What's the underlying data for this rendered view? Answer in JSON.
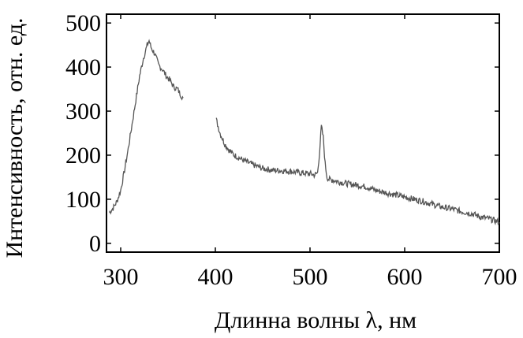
{
  "chart_data": {
    "type": "line",
    "xlabel": "Длинна волны λ, нм",
    "ylabel": "Интенсивность, отн. ед.",
    "xlim": [
      285,
      700
    ],
    "ylim": [
      -20,
      520
    ],
    "xticks": [
      300,
      400,
      500,
      600,
      700
    ],
    "yticks": [
      0,
      100,
      200,
      300,
      400,
      500
    ],
    "xtick_labels": [
      "300",
      "400",
      "500",
      "600",
      "700"
    ],
    "ytick_labels": [
      "0",
      "100",
      "200",
      "300",
      "400",
      "500"
    ],
    "grid": false,
    "line_color": "#555555",
    "series": [
      {
        "x": [
          288,
          292,
          296,
          300,
          304,
          308,
          312,
          316,
          320,
          324,
          328,
          330,
          332,
          336,
          340,
          344,
          348,
          352,
          356,
          360,
          364,
          366
        ],
        "y": [
          70,
          80,
          95,
          120,
          165,
          215,
          270,
          325,
          380,
          420,
          450,
          460,
          445,
          430,
          405,
          395,
          380,
          370,
          355,
          350,
          335,
          330
        ]
      },
      {
        "x": [
          401,
          405,
          410,
          415,
          420,
          430,
          440,
          450,
          460,
          470,
          480,
          490,
          500,
          505,
          508,
          510,
          512,
          514,
          516,
          518,
          520,
          525,
          530,
          540,
          550,
          560,
          570,
          580,
          590,
          600,
          610,
          620,
          630,
          640,
          650,
          660,
          670,
          680,
          690,
          700
        ],
        "y": [
          280,
          250,
          225,
          210,
          200,
          188,
          178,
          170,
          166,
          165,
          163,
          160,
          158,
          155,
          160,
          205,
          265,
          240,
          180,
          150,
          145,
          143,
          140,
          135,
          132,
          128,
          120,
          115,
          110,
          105,
          100,
          95,
          88,
          82,
          78,
          72,
          68,
          60,
          55,
          48
        ]
      }
    ]
  }
}
